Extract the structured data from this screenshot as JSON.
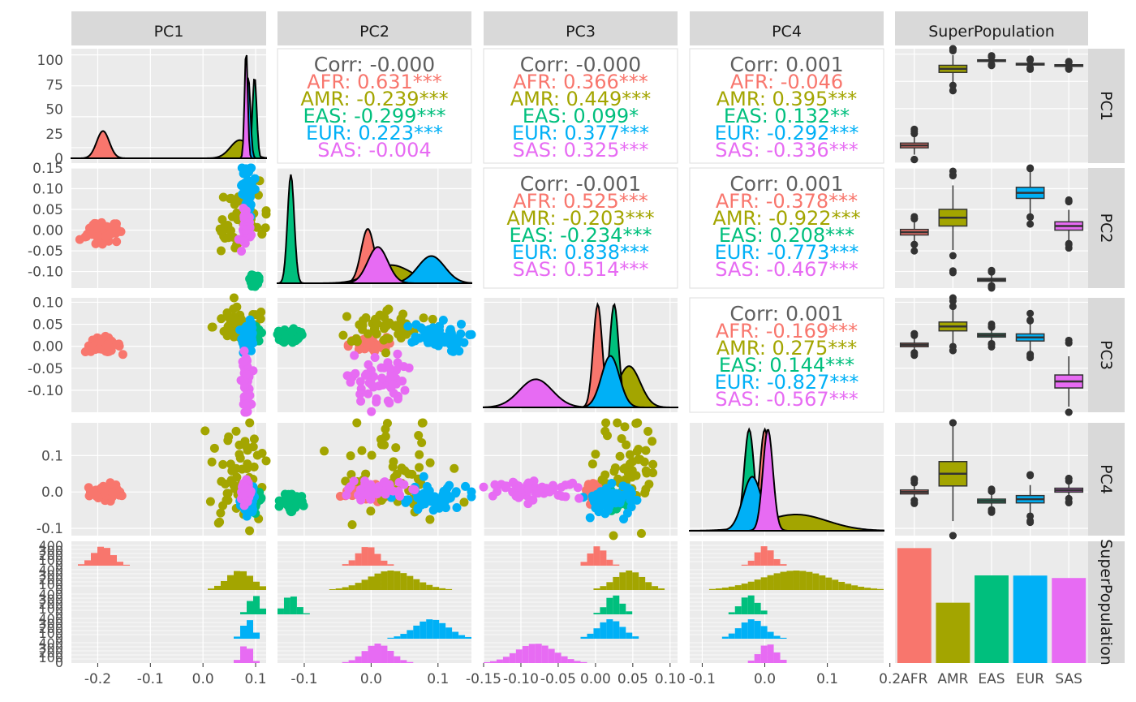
{
  "palette": {
    "AFR": "#F8766D",
    "AMR": "#A3A500",
    "EAS": "#00BF7D",
    "EUR": "#00B0F6",
    "SAS": "#E76BF3",
    "panel_bg": "#EBEBEB",
    "strip_bg": "#D9D9D9",
    "corr_gray": "#5F5F5F"
  },
  "chart_data": {
    "type": "pairs",
    "variables": [
      "PC1",
      "PC2",
      "PC3",
      "PC4",
      "SuperPopulation"
    ],
    "groups": [
      "AFR",
      "AMR",
      "EAS",
      "EUR",
      "SAS"
    ],
    "axes": {
      "PC1": {
        "range": [
          -0.25,
          0.12
        ],
        "ticks": [
          -0.2,
          -0.1,
          0.0,
          0.1
        ],
        "tick_labels": [
          "-0.2",
          "-0.1",
          "0.0",
          "0.1"
        ]
      },
      "PC2": {
        "range": [
          -0.14,
          0.15
        ],
        "ticks": [
          -0.1,
          0.0,
          0.1
        ],
        "tick_labels": [
          "-0.1",
          "0.0",
          "0.1"
        ],
        "y_ticks": [
          -0.1,
          -0.05,
          0.0,
          0.05,
          0.1,
          0.15
        ],
        "y_tick_labels": [
          "-0.10",
          "-0.05",
          "0.00",
          "0.05",
          "0.10",
          "0.15"
        ]
      },
      "PC3": {
        "range": [
          -0.15,
          0.11
        ],
        "ticks": [
          -0.15,
          -0.1,
          -0.05,
          0.0,
          0.05,
          0.1
        ],
        "tick_labels": [
          "-0.15",
          "-0.10",
          "-0.05",
          "0.00",
          "0.05",
          "0.10"
        ],
        "y_ticks": [
          -0.1,
          -0.05,
          0.0,
          0.05,
          0.1
        ],
        "y_tick_labels": [
          "-0.10",
          "-0.05",
          "0.00",
          "0.05",
          "0.10"
        ]
      },
      "PC4": {
        "range": [
          -0.12,
          0.19
        ],
        "ticks": [
          -0.1,
          0.0,
          0.1,
          0.2
        ],
        "tick_labels": [
          "-0.1",
          "0.0",
          "0.1",
          "0.2"
        ],
        "y_ticks": [
          -0.1,
          0.0,
          0.1
        ],
        "y_tick_labels": [
          "-0.1",
          "0.0",
          "0.1"
        ]
      },
      "SuperPopulation": {
        "tick_labels": [
          "AFR",
          "AMR",
          "EAS",
          "EUR",
          "SAS"
        ]
      }
    },
    "density_y_axis": {
      "range": [
        0,
        105
      ],
      "ticks": [
        0,
        25,
        50,
        75,
        100
      ],
      "tick_labels": [
        "0",
        "25",
        "50",
        "75",
        "100"
      ]
    },
    "correlations": [
      {
        "vars": [
          "PC1",
          "PC2"
        ],
        "overall": "Corr: -0.000",
        "groups": [
          {
            "group": "AFR",
            "text": "AFR: 0.631***"
          },
          {
            "group": "AMR",
            "text": "AMR: -0.239***"
          },
          {
            "group": "EAS",
            "text": "EAS: -0.299***"
          },
          {
            "group": "EUR",
            "text": "EUR: 0.223***"
          },
          {
            "group": "SAS",
            "text": "SAS: -0.004"
          }
        ]
      },
      {
        "vars": [
          "PC1",
          "PC3"
        ],
        "overall": "Corr: -0.000",
        "groups": [
          {
            "group": "AFR",
            "text": "AFR: 0.366***"
          },
          {
            "group": "AMR",
            "text": "AMR: 0.449***"
          },
          {
            "group": "EAS",
            "text": "EAS: 0.099*"
          },
          {
            "group": "EUR",
            "text": "EUR: 0.377***"
          },
          {
            "group": "SAS",
            "text": "SAS: 0.325***"
          }
        ]
      },
      {
        "vars": [
          "PC1",
          "PC4"
        ],
        "overall": "Corr: 0.001",
        "groups": [
          {
            "group": "AFR",
            "text": "AFR: -0.046"
          },
          {
            "group": "AMR",
            "text": "AMR: 0.395***"
          },
          {
            "group": "EAS",
            "text": "EAS: 0.132**"
          },
          {
            "group": "EUR",
            "text": "EUR: -0.292***"
          },
          {
            "group": "SAS",
            "text": "SAS: -0.336***"
          }
        ]
      },
      {
        "vars": [
          "PC2",
          "PC3"
        ],
        "overall": "Corr: -0.001",
        "groups": [
          {
            "group": "AFR",
            "text": "AFR: 0.525***"
          },
          {
            "group": "AMR",
            "text": "AMR: -0.203***"
          },
          {
            "group": "EAS",
            "text": "EAS: -0.234***"
          },
          {
            "group": "EUR",
            "text": "EUR: 0.838***"
          },
          {
            "group": "SAS",
            "text": "SAS: 0.514***"
          }
        ]
      },
      {
        "vars": [
          "PC2",
          "PC4"
        ],
        "overall": "Corr: 0.001",
        "groups": [
          {
            "group": "AFR",
            "text": "AFR: -0.378***"
          },
          {
            "group": "AMR",
            "text": "AMR: -0.922***"
          },
          {
            "group": "EAS",
            "text": "EAS: 0.208***"
          },
          {
            "group": "EUR",
            "text": "EUR: -0.773***"
          },
          {
            "group": "SAS",
            "text": "SAS: -0.467***"
          }
        ]
      },
      {
        "vars": [
          "PC3",
          "PC4"
        ],
        "overall": "Corr: 0.001",
        "groups": [
          {
            "group": "AFR",
            "text": "AFR: -0.169***"
          },
          {
            "group": "AMR",
            "text": "AMR: 0.275***"
          },
          {
            "group": "EAS",
            "text": "EAS: 0.144***"
          },
          {
            "group": "EUR",
            "text": "EUR: -0.827***"
          },
          {
            "group": "SAS",
            "text": "SAS: -0.567***"
          }
        ]
      }
    ],
    "group_summary": {
      "PC1": {
        "AFR": {
          "mean": -0.19,
          "sd": 0.012
        },
        "AMR": {
          "mean": 0.07,
          "sd": 0.018
        },
        "EAS": {
          "mean": 0.098,
          "sd": 0.004
        },
        "EUR": {
          "mean": 0.086,
          "sd": 0.004
        },
        "SAS": {
          "mean": 0.082,
          "sd": 0.003
        }
      },
      "PC2": {
        "AFR": {
          "mean": -0.005,
          "sd": 0.01
        },
        "AMR": {
          "mean": 0.03,
          "sd": 0.03
        },
        "EAS": {
          "mean": -0.12,
          "sd": 0.005
        },
        "EUR": {
          "mean": 0.09,
          "sd": 0.02
        },
        "SAS": {
          "mean": 0.01,
          "sd": 0.015
        }
      },
      "PC3": {
        "AFR": {
          "mean": 0.003,
          "sd": 0.006
        },
        "AMR": {
          "mean": 0.045,
          "sd": 0.015
        },
        "EAS": {
          "mean": 0.025,
          "sd": 0.006
        },
        "EUR": {
          "mean": 0.02,
          "sd": 0.012
        },
        "SAS": {
          "mean": -0.08,
          "sd": 0.022
        }
      },
      "PC4": {
        "AFR": {
          "mean": 0.0,
          "sd": 0.008
        },
        "AMR": {
          "mean": 0.05,
          "sd": 0.05
        },
        "EAS": {
          "mean": -0.025,
          "sd": 0.008
        },
        "EUR": {
          "mean": -0.02,
          "sd": 0.015
        },
        "SAS": {
          "mean": 0.005,
          "sd": 0.008
        }
      }
    },
    "counts": {
      "AFR": 661,
      "AMR": 347,
      "EAS": 504,
      "EUR": 503,
      "SAS": 489
    },
    "count_axis": {
      "range": [
        0,
        700
      ]
    },
    "hist_y_tick_labels": [
      "0",
      "100",
      "200",
      "300",
      "400"
    ]
  }
}
